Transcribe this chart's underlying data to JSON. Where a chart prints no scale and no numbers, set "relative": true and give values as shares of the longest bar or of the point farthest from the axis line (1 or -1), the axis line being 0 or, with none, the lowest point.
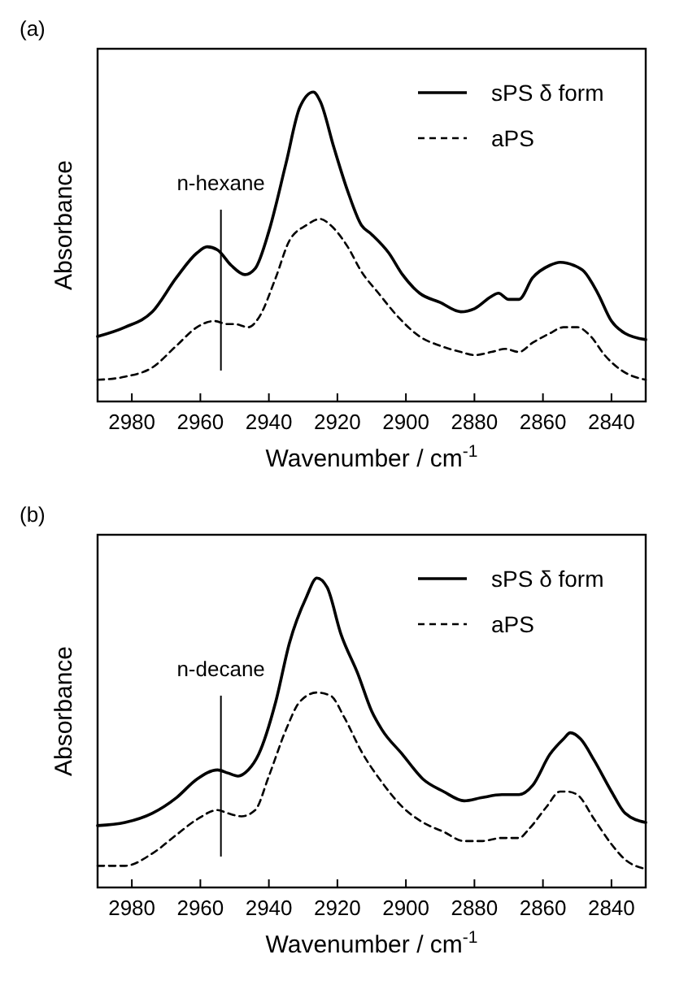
{
  "chart_data": [
    {
      "type": "line",
      "title": "(a)",
      "xlabel": "Wavenumber / cm$^{-1}$",
      "ylabel": "Absorbance",
      "relative": true,
      "xlim": [
        2990,
        2830
      ],
      "xticks": [
        2980,
        2960,
        2940,
        2920,
        2900,
        2880,
        2860,
        2840
      ],
      "legend": "top right",
      "grid": false,
      "tick_labels": "x",
      "ref_lines": [
        {
          "axis": "x",
          "value": 2954,
          "label": "n-hexane",
          "color": "#000000"
        }
      ],
      "series": [
        {
          "name": "sPS δ form",
          "color": "#000000",
          "line_style": "solid",
          "x": [
            2990,
            2982,
            2974,
            2967,
            2961,
            2958,
            2955,
            2951,
            2947,
            2944,
            2940,
            2935,
            2931,
            2927,
            2925,
            2921,
            2917,
            2913,
            2910,
            2905,
            2901,
            2896,
            2890,
            2884,
            2880,
            2875,
            2873,
            2870,
            2867,
            2863,
            2858,
            2855,
            2851,
            2848,
            2844,
            2840,
            2836,
            2830
          ],
          "values": [
            0.21,
            0.24,
            0.29,
            0.4,
            0.48,
            0.5,
            0.49,
            0.44,
            0.41,
            0.43,
            0.55,
            0.77,
            0.95,
            1,
            0.97,
            0.82,
            0.68,
            0.57,
            0.54,
            0.48,
            0.41,
            0.35,
            0.32,
            0.29,
            0.3,
            0.34,
            0.35,
            0.33,
            0.33,
            0.4,
            0.44,
            0.45,
            0.44,
            0.42,
            0.35,
            0.26,
            0.22,
            0.2
          ]
        },
        {
          "name": "aPS",
          "color": "#000000",
          "line_style": "dashed",
          "x": [
            2990,
            2982,
            2974,
            2967,
            2961,
            2956,
            2952,
            2950,
            2946,
            2943,
            2938,
            2934,
            2929,
            2925,
            2922,
            2917,
            2913,
            2908,
            2902,
            2896,
            2890,
            2884,
            2880,
            2875,
            2871,
            2867,
            2863,
            2858,
            2854,
            2850,
            2846,
            2842,
            2837,
            2830
          ],
          "values": [
            0.07,
            0.08,
            0.11,
            0.18,
            0.24,
            0.26,
            0.25,
            0.25,
            0.24,
            0.27,
            0.4,
            0.52,
            0.57,
            0.59,
            0.57,
            0.5,
            0.42,
            0.35,
            0.27,
            0.21,
            0.18,
            0.16,
            0.15,
            0.16,
            0.17,
            0.16,
            0.19,
            0.22,
            0.24,
            0.24,
            0.21,
            0.15,
            0.1,
            0.07
          ]
        }
      ]
    },
    {
      "type": "line",
      "title": "(b)",
      "xlabel": "Wavenumber / cm$^{-1}$",
      "ylabel": "Absorbance",
      "relative": true,
      "xlim": [
        2990,
        2830
      ],
      "xticks": [
        2980,
        2960,
        2940,
        2920,
        2900,
        2880,
        2860,
        2840
      ],
      "legend": "top right",
      "grid": false,
      "tick_labels": "x",
      "ref_lines": [
        {
          "axis": "x",
          "value": 2954,
          "label": "n-decane",
          "color": "#000000"
        }
      ],
      "series": [
        {
          "name": "sPS δ form",
          "color": "#000000",
          "line_style": "solid",
          "x": [
            2990,
            2982,
            2974,
            2967,
            2961,
            2955,
            2952,
            2949,
            2946,
            2943,
            2938,
            2934,
            2929,
            2926,
            2923,
            2919,
            2914,
            2910,
            2907,
            2901,
            2895,
            2889,
            2883,
            2878,
            2872,
            2867,
            2863,
            2858,
            2854,
            2852,
            2849,
            2845,
            2840,
            2836,
            2830
          ],
          "values": [
            0.2,
            0.21,
            0.24,
            0.29,
            0.35,
            0.38,
            0.37,
            0.36,
            0.38,
            0.43,
            0.6,
            0.79,
            0.94,
            1,
            0.97,
            0.82,
            0.69,
            0.57,
            0.51,
            0.43,
            0.35,
            0.31,
            0.28,
            0.29,
            0.3,
            0.3,
            0.33,
            0.43,
            0.48,
            0.5,
            0.48,
            0.41,
            0.31,
            0.24,
            0.21
          ]
        },
        {
          "name": "aPS",
          "color": "#000000",
          "line_style": "dashed",
          "x": [
            2990,
            2982,
            2974,
            2967,
            2961,
            2955,
            2952,
            2948,
            2944,
            2940,
            2935,
            2931,
            2926,
            2922,
            2918,
            2913,
            2907,
            2901,
            2895,
            2889,
            2883,
            2878,
            2872,
            2867,
            2864,
            2859,
            2855,
            2853,
            2850,
            2845,
            2840,
            2836,
            2830
          ],
          "values": [
            0.07,
            0.07,
            0.11,
            0.17,
            0.22,
            0.25,
            0.24,
            0.23,
            0.25,
            0.36,
            0.51,
            0.6,
            0.63,
            0.62,
            0.55,
            0.44,
            0.34,
            0.26,
            0.21,
            0.18,
            0.15,
            0.15,
            0.16,
            0.16,
            0.19,
            0.26,
            0.31,
            0.31,
            0.3,
            0.22,
            0.14,
            0.09,
            0.06
          ]
        }
      ]
    }
  ]
}
